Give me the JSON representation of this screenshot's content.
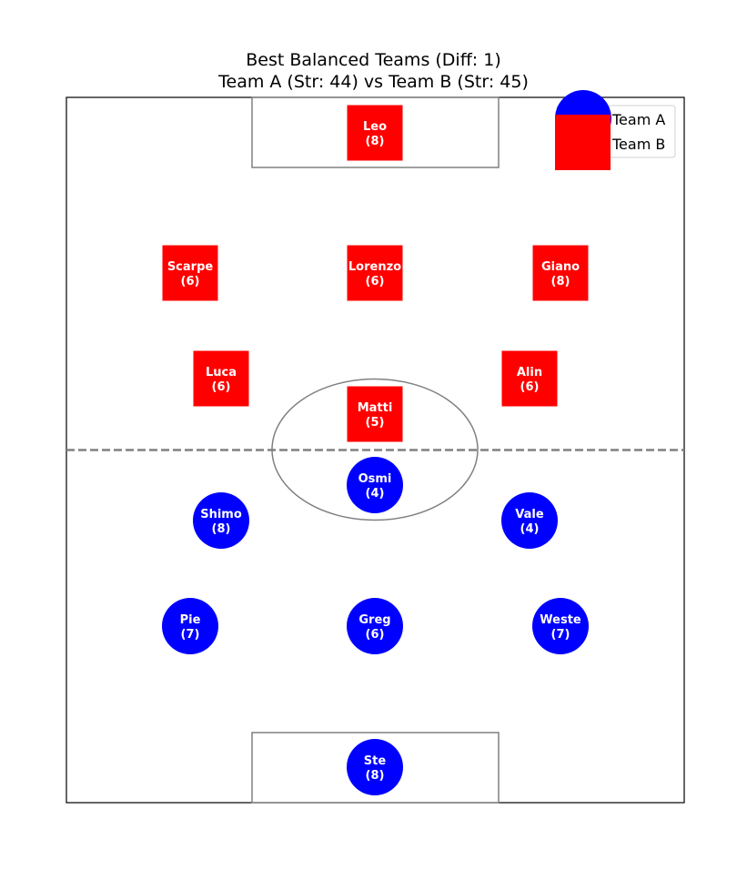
{
  "title": {
    "line1": "Best Balanced Teams (Diff: 1)",
    "line2": "Team A (Str: 44) vs Team B (Str: 45)"
  },
  "legend": {
    "team_a": "Team A",
    "team_b": "Team B"
  },
  "colors": {
    "team_a": "#0000ff",
    "team_b": "#ff0000",
    "pitch_lines": "#808080",
    "border": "#000000"
  },
  "team_a_players": [
    {
      "name": "Ste",
      "strength": "(8)",
      "role": "goalkeeper"
    },
    {
      "name": "Pie",
      "strength": "(7)",
      "role": "defender-left"
    },
    {
      "name": "Greg",
      "strength": "(6)",
      "role": "defender-center"
    },
    {
      "name": "Weste",
      "strength": "(7)",
      "role": "defender-right"
    },
    {
      "name": "Shimo",
      "strength": "(8)",
      "role": "midfielder-left"
    },
    {
      "name": "Vale",
      "strength": "(4)",
      "role": "midfielder-right"
    },
    {
      "name": "Osmi",
      "strength": "(4)",
      "role": "forward"
    }
  ],
  "team_b_players": [
    {
      "name": "Leo",
      "strength": "(8)",
      "role": "goalkeeper"
    },
    {
      "name": "Scarpe",
      "strength": "(6)",
      "role": "defender-left"
    },
    {
      "name": "Lorenzo",
      "strength": "(6)",
      "role": "defender-center"
    },
    {
      "name": "Giano",
      "strength": "(8)",
      "role": "defender-right"
    },
    {
      "name": "Luca",
      "strength": "(6)",
      "role": "midfielder-left"
    },
    {
      "name": "Alin",
      "strength": "(6)",
      "role": "midfielder-right"
    },
    {
      "name": "Matti",
      "strength": "(5)",
      "role": "forward"
    }
  ]
}
